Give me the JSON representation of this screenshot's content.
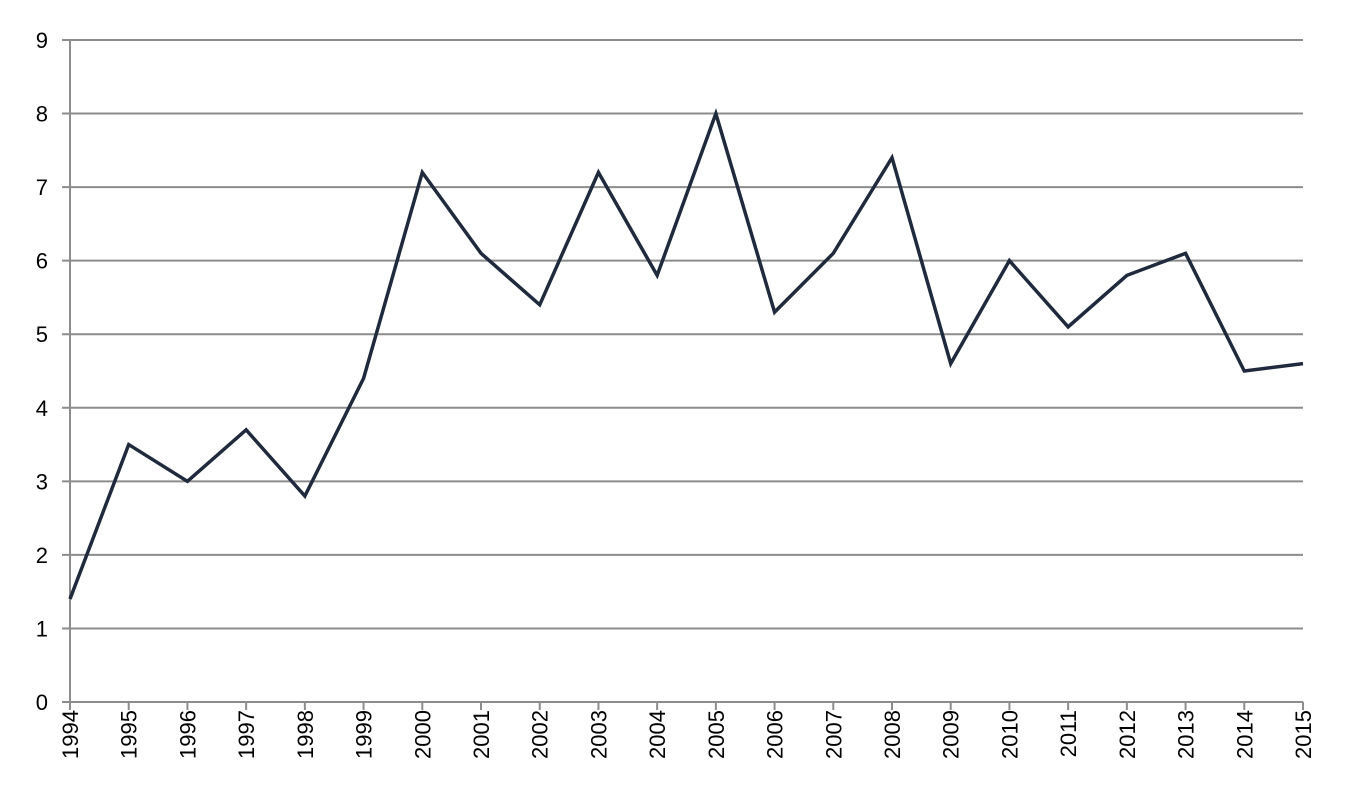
{
  "chart_data": {
    "type": "line",
    "categories": [
      "1994",
      "1995",
      "1996",
      "1997",
      "1998",
      "1999",
      "2000",
      "2001",
      "2002",
      "2003",
      "2004",
      "2005",
      "2006",
      "2007",
      "2008",
      "2009",
      "2010",
      "2011",
      "2012",
      "2013",
      "2014",
      "2015"
    ],
    "series": [
      {
        "color": "#1f2a3c",
        "values": [
          1.4,
          3.5,
          3.0,
          3.7,
          2.8,
          4.4,
          7.2,
          6.1,
          5.4,
          7.2,
          5.8,
          8.0,
          5.3,
          6.1,
          7.4,
          4.6,
          6.0,
          5.1,
          5.8,
          6.1,
          4.5,
          4.6
        ]
      }
    ],
    "ylim": [
      0,
      9
    ],
    "yticks": [
      0,
      1,
      2,
      3,
      4,
      5,
      6,
      7,
      8,
      9
    ],
    "grid": true
  }
}
